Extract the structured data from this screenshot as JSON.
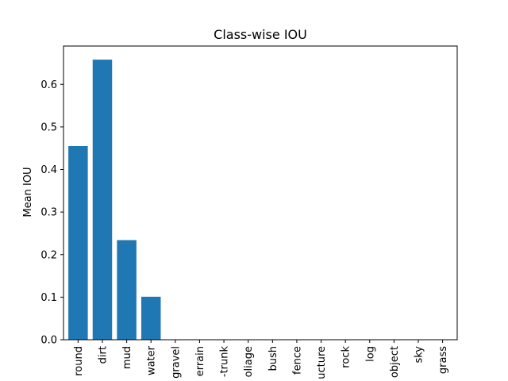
{
  "chart_data": {
    "type": "bar",
    "title": "Class-wise IOU",
    "xlabel": "",
    "ylabel": "Mean IOU",
    "ylim": [
      0,
      0.69
    ],
    "yticks": [
      0.0,
      0.1,
      0.2,
      0.3,
      0.4,
      0.5,
      0.6
    ],
    "ytick_labels": [
      "0.0",
      "0.1",
      "0.2",
      "0.3",
      "0.4",
      "0.5",
      "0.6"
    ],
    "categories": [
      "round",
      "dirt",
      "mud",
      "water",
      "gravel",
      "errain",
      "-trunk",
      "oliage",
      "bush",
      "fence",
      "ucture",
      "rock",
      "log",
      "object",
      "sky",
      "grass"
    ],
    "values": [
      0.455,
      0.658,
      0.234,
      0.101,
      0,
      0,
      0,
      0,
      0,
      0,
      0,
      0,
      0,
      0,
      0,
      0
    ],
    "grid": false,
    "legend": "none",
    "bar_color": "#1f77b4"
  }
}
